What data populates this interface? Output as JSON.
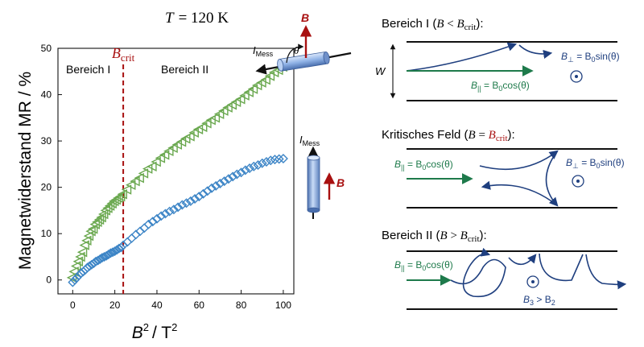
{
  "header": {
    "temp_var": "T",
    "temp_eq": "= 120 K"
  },
  "chart_data": {
    "type": "scatter",
    "title": "",
    "xlabel_base": "B",
    "xlabel_unit": "/ T",
    "sup": "2",
    "ylabel": "Magnetwiderstand MR / %",
    "xlim": [
      -7,
      105
    ],
    "ylim": [
      -3,
      50
    ],
    "xticks": [
      0,
      20,
      40,
      60,
      80,
      100
    ],
    "yticks": [
      0,
      10,
      20,
      30,
      40,
      50
    ],
    "grid": false,
    "bcrit_x": 24,
    "bcrit_label": "B",
    "bcrit_sub": "crit",
    "region1_label": "Bereich I",
    "region2_label": "Bereich II",
    "series": [
      {
        "marker": "triangle-left",
        "color": "#6aa84f",
        "x": [
          0,
          1,
          2,
          3,
          4,
          5,
          6,
          7,
          8,
          9,
          10,
          11,
          12,
          13,
          14,
          15,
          16,
          17,
          18,
          19,
          20,
          21,
          22,
          23,
          24,
          26,
          28,
          30,
          32,
          34,
          36,
          38,
          40,
          42,
          44,
          46,
          48,
          50,
          52,
          54,
          56,
          58,
          60,
          62,
          64,
          66,
          68,
          70,
          72,
          74,
          76,
          78,
          80,
          82,
          84,
          86,
          88,
          90,
          92,
          94,
          96,
          98,
          100
        ],
        "y": [
          0.5,
          1.8,
          3.0,
          4.0,
          5.0,
          6.0,
          7.5,
          8.5,
          9.5,
          10.5,
          11.0,
          12.0,
          12.5,
          13.0,
          13.5,
          14.2,
          15.0,
          15.5,
          16.0,
          16.5,
          17.0,
          17.3,
          17.7,
          18.0,
          18.5,
          19.5,
          20.5,
          21.3,
          22.0,
          23.0,
          24.0,
          24.5,
          25.5,
          26.3,
          27.0,
          27.8,
          28.5,
          29.2,
          29.8,
          30.5,
          31.0,
          31.8,
          32.5,
          33.0,
          33.8,
          34.5,
          35.0,
          35.8,
          36.5,
          37.2,
          37.8,
          38.4,
          39.0,
          39.8,
          40.5,
          41.2,
          42.0,
          42.6,
          43.2,
          44.0,
          44.8,
          45.3,
          46.0
        ]
      },
      {
        "marker": "diamond",
        "color": "#3d85c6",
        "x": [
          0,
          1,
          2,
          3,
          4,
          5,
          6,
          7,
          8,
          9,
          10,
          11,
          12,
          13,
          14,
          15,
          16,
          17,
          18,
          19,
          20,
          21,
          22,
          23,
          24,
          26,
          28,
          30,
          32,
          34,
          36,
          38,
          40,
          42,
          44,
          46,
          48,
          50,
          52,
          54,
          56,
          58,
          60,
          62,
          64,
          66,
          68,
          70,
          72,
          74,
          76,
          78,
          80,
          82,
          84,
          86,
          88,
          90,
          92,
          94,
          96,
          98,
          100
        ],
        "y": [
          -0.5,
          0,
          0.5,
          1.0,
          1.5,
          1.8,
          2.2,
          2.7,
          3.0,
          3.3,
          3.6,
          4.0,
          4.2,
          4.5,
          4.8,
          5.0,
          5.2,
          5.5,
          5.8,
          6.0,
          6.2,
          6.5,
          6.8,
          7.0,
          7.5,
          8.2,
          9.0,
          9.8,
          10.5,
          11.2,
          12.0,
          12.6,
          13.2,
          13.8,
          14.3,
          14.8,
          15.2,
          15.7,
          16.2,
          16.6,
          17.0,
          17.5,
          18.0,
          18.6,
          19.2,
          19.8,
          20.3,
          20.8,
          21.3,
          21.8,
          22.3,
          22.8,
          23.2,
          23.7,
          24.1,
          24.5,
          24.8,
          25.2,
          25.5,
          25.8,
          26.0,
          26.1,
          26.2
        ]
      }
    ]
  },
  "insets": {
    "imess": "I",
    "imess_sub": "Mess",
    "theta": "θ",
    "bvec": "B"
  },
  "panels": {
    "p1": {
      "title_text": "Bereich I (",
      "sym": "B",
      "rel": " < ",
      "crit": "B",
      "crit_sub": "crit",
      "close": "):",
      "w_label": "W",
      "perp": "B",
      "perp_sub": "⊥",
      "perp_eq": " = B",
      "perp_sub0": "0",
      "perp_fn": "sin(θ)",
      "par": "B",
      "par_sub": "||",
      "par_eq": " = B",
      "par_sub0": "0",
      "par_fn": "cos(θ)"
    },
    "p2": {
      "title_text": "Kritisches Feld (",
      "sym": "B",
      "rel": " = ",
      "crit": "B",
      "crit_sub": "crit",
      "close": "):",
      "par": "B",
      "par_sub": "||",
      "par_eq": " = B",
      "par_sub0": "0",
      "par_fn": "cos(θ)",
      "perp": "B",
      "perp_sub": "⊥",
      "perp_eq": " = B",
      "perp_sub0": "0",
      "perp_fn": "sin(θ)"
    },
    "p3": {
      "title_text": "Bereich II (",
      "sym": "B",
      "rel": " > ",
      "crit": "B",
      "crit_sub": "crit",
      "close": "):",
      "par": "B",
      "par_sub": "||",
      "par_eq": " = B",
      "par_sub0": "0",
      "par_fn": "cos(θ)",
      "cmp": "B",
      "cmp_sub": "3",
      "cmp_rel": " > B",
      "cmp_sub2": "2"
    }
  },
  "colors": {
    "green": "#1e7a4b",
    "navy": "#1f3f7f",
    "red": "#a81010",
    "tri": "#6aa84f",
    "dia": "#3d85c6"
  }
}
